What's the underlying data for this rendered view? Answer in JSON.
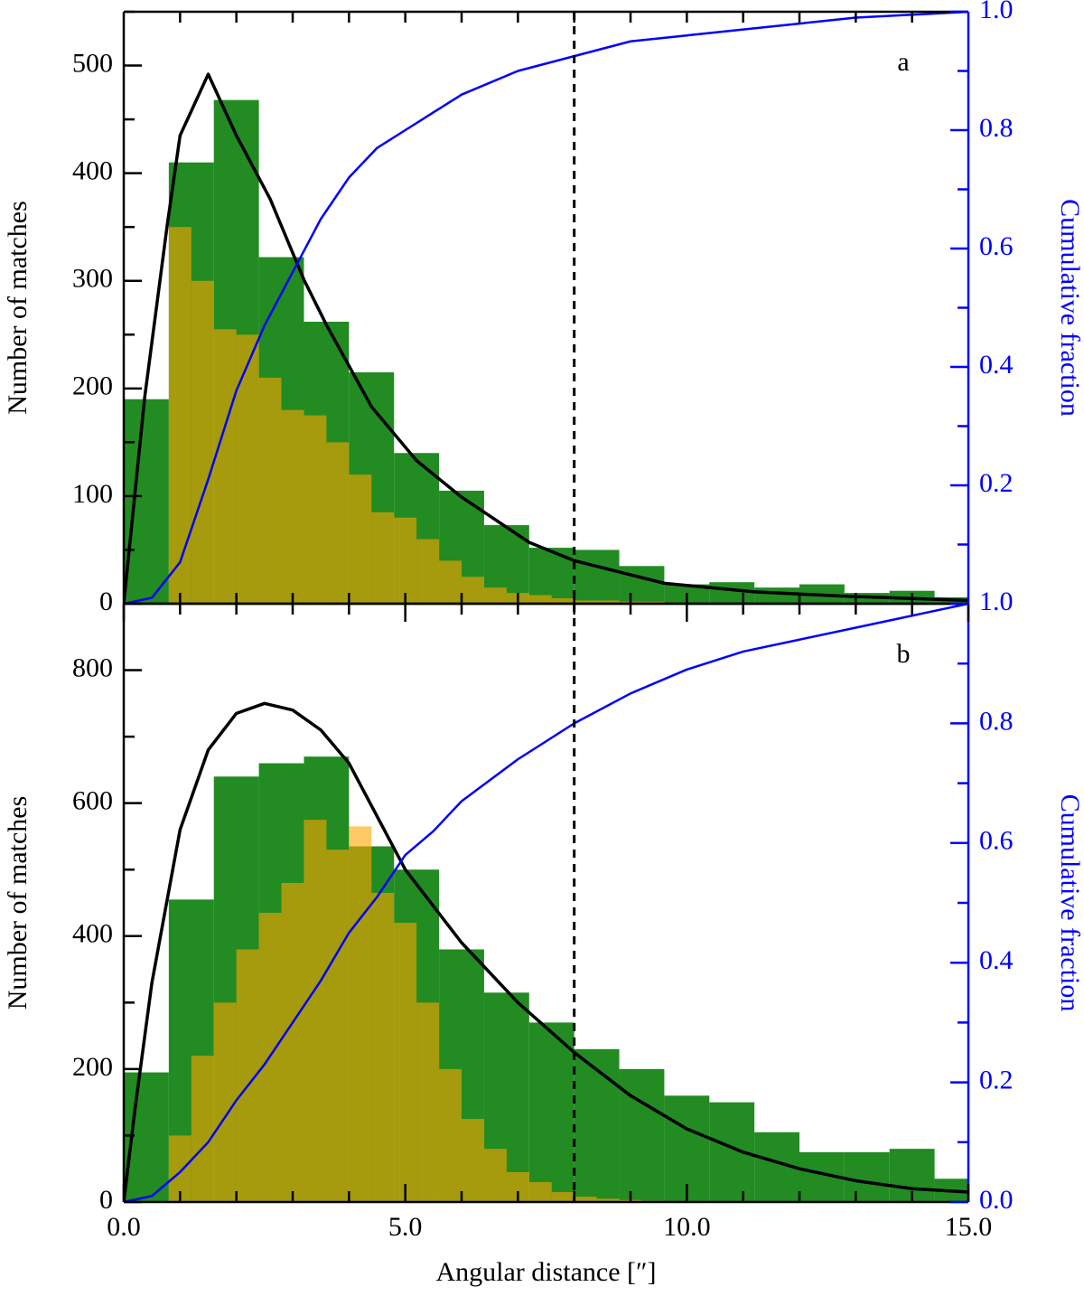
{
  "chart_data": [
    {
      "type": "histogram",
      "label": "a",
      "ylabel": "Number of matches",
      "y2label": "Cumulative fraction",
      "xlim": [
        0,
        15
      ],
      "ylim": [
        0,
        550
      ],
      "y2lim": [
        0,
        1
      ],
      "xtickmarks": [
        1,
        2,
        3,
        4,
        5,
        6,
        7,
        8,
        9,
        10,
        11,
        12,
        13,
        14
      ],
      "yticks": [
        0,
        100,
        200,
        300,
        400,
        500
      ],
      "yminorticks": [
        50,
        150,
        250,
        350,
        450,
        550
      ],
      "y2ticks": [
        0.2,
        0.4,
        0.6,
        0.8,
        {
          "value": 1,
          "label": "1.0"
        }
      ],
      "y2minorticks": [
        0.1,
        0.3,
        0.5,
        0.7,
        0.9
      ],
      "histograms": [
        {
          "color": "#228b22",
          "opacity": 1,
          "bins": [
            0,
            0.8,
            1.6,
            2.4,
            3.2,
            4,
            4.8,
            5.6,
            6.4,
            7.2,
            8,
            8.8,
            9.6,
            10.4,
            11.2,
            12,
            12.8,
            13.6,
            14.4,
            15.2
          ],
          "values": [
            190,
            410,
            468,
            322,
            262,
            215,
            140,
            105,
            73,
            52,
            50,
            35,
            18,
            20,
            15,
            18,
            10,
            12,
            6
          ]
        },
        {
          "color": "#ffa500",
          "opacity": 0.6,
          "bins": [
            0,
            0.4,
            0.8,
            1.2,
            1.6,
            2,
            2.4,
            2.8,
            3.2,
            3.6,
            4,
            4.4,
            4.8,
            5.2,
            5.6,
            6,
            6.4,
            6.8,
            7.2,
            7.6,
            8,
            8.4,
            8.8,
            9.2,
            9.6,
            10
          ],
          "values": [
            0,
            0,
            350,
            300,
            255,
            250,
            210,
            180,
            175,
            150,
            120,
            85,
            80,
            60,
            40,
            25,
            15,
            10,
            8,
            5,
            3,
            3,
            2,
            2,
            1
          ]
        }
      ],
      "lines": [
        {
          "color": "#000000",
          "x": [
            0,
            0.37,
            0.77,
            1,
            1.5,
            2,
            2.6,
            3.2,
            3.6,
            4.4,
            5.2,
            6,
            7.2,
            8,
            9.6,
            11.2,
            12.8,
            15
          ],
          "values": [
            0,
            191,
            351,
            435,
            492,
            435,
            376,
            301,
            259,
            183,
            133,
            99,
            57,
            40,
            19,
            11,
            7,
            3
          ]
        },
        {
          "color": "#0000ff",
          "axis": "y2",
          "x": [
            0,
            0.5,
            1,
            1.5,
            2,
            2.5,
            3,
            3.5,
            4,
            4.5,
            5,
            5.5,
            6,
            7,
            8,
            9,
            10,
            11,
            12,
            13,
            14,
            15
          ],
          "values": [
            0,
            0.01,
            0.07,
            0.21,
            0.36,
            0.47,
            0.56,
            0.65,
            0.72,
            0.77,
            0.8,
            0.83,
            0.86,
            0.9,
            0.925,
            0.95,
            0.96,
            0.97,
            0.98,
            0.99,
            0.995,
            1
          ]
        }
      ],
      "vline": 8
    },
    {
      "type": "histogram",
      "label": "b",
      "ylabel": "Number of matches",
      "y2label": "Cumulative fraction",
      "xlabel": "Angular distance [″]",
      "xlim": [
        0,
        15
      ],
      "ylim": [
        0,
        900
      ],
      "y2lim": [
        0,
        1
      ],
      "xticks": [
        {
          "value": 0,
          "label": "0.0"
        },
        {
          "value": 5,
          "label": "5.0"
        },
        {
          "value": 10,
          "label": "10.0"
        },
        {
          "value": 15,
          "label": "15.0"
        }
      ],
      "xtickmarks": [
        1,
        2,
        3,
        4,
        6,
        7,
        8,
        9,
        11,
        12,
        13,
        14
      ],
      "yticks": [
        0,
        200,
        400,
        600,
        800
      ],
      "yminorticks": [
        100,
        300,
        500,
        700
      ],
      "y2ticks": [
        {
          "value": 0,
          "label": "0.0"
        },
        0.2,
        0.4,
        0.6,
        0.8,
        {
          "value": 1,
          "label": "1.0"
        }
      ],
      "y2minorticks": [
        0.1,
        0.3,
        0.5,
        0.7,
        0.9
      ],
      "histograms": [
        {
          "color": "#228b22",
          "opacity": 1,
          "bins": [
            0,
            0.8,
            1.6,
            2.4,
            3.2,
            4,
            4.8,
            5.6,
            6.4,
            7.2,
            8,
            8.8,
            9.6,
            10.4,
            11.2,
            12,
            12.8,
            13.6,
            14.4,
            15.2
          ],
          "values": [
            195,
            455,
            640,
            660,
            670,
            535,
            500,
            380,
            315,
            270,
            230,
            200,
            160,
            150,
            105,
            75,
            75,
            80,
            35
          ]
        },
        {
          "color": "#ffa500",
          "opacity": 0.6,
          "bins": [
            0,
            0.4,
            0.8,
            1.2,
            1.6,
            2,
            2.4,
            2.8,
            3.2,
            3.6,
            4,
            4.4,
            4.8,
            5.2,
            5.6,
            6,
            6.4,
            6.8,
            7.2,
            7.6,
            8,
            8.4,
            8.8,
            9.2,
            9.6,
            10
          ],
          "values": [
            0,
            0,
            100,
            220,
            300,
            380,
            435,
            480,
            575,
            530,
            565,
            465,
            420,
            300,
            200,
            125,
            80,
            45,
            30,
            15,
            8,
            5,
            3,
            2,
            1
          ]
        }
      ],
      "lines": [
        {
          "color": "#000000",
          "x": [
            0,
            0.2,
            0.5,
            1,
            1.5,
            2,
            2.5,
            3,
            3.5,
            4,
            5,
            6,
            7,
            8,
            9,
            10,
            11,
            12,
            13,
            14,
            15
          ],
          "values": [
            0,
            140,
            330,
            560,
            680,
            735,
            750,
            740,
            710,
            660,
            500,
            390,
            300,
            225,
            160,
            110,
            75,
            50,
            32,
            20,
            15
          ]
        },
        {
          "color": "#0000ff",
          "axis": "y2",
          "x": [
            0,
            0.5,
            1,
            1.5,
            2,
            2.5,
            3,
            3.5,
            4,
            4.5,
            5,
            5.5,
            6,
            7,
            8,
            9,
            10,
            11,
            12,
            13,
            14,
            15
          ],
          "values": [
            0,
            0.01,
            0.05,
            0.1,
            0.17,
            0.23,
            0.3,
            0.37,
            0.45,
            0.51,
            0.58,
            0.62,
            0.67,
            0.74,
            0.8,
            0.85,
            0.89,
            0.92,
            0.94,
            0.96,
            0.98,
            1
          ]
        }
      ],
      "vline": 8
    }
  ]
}
